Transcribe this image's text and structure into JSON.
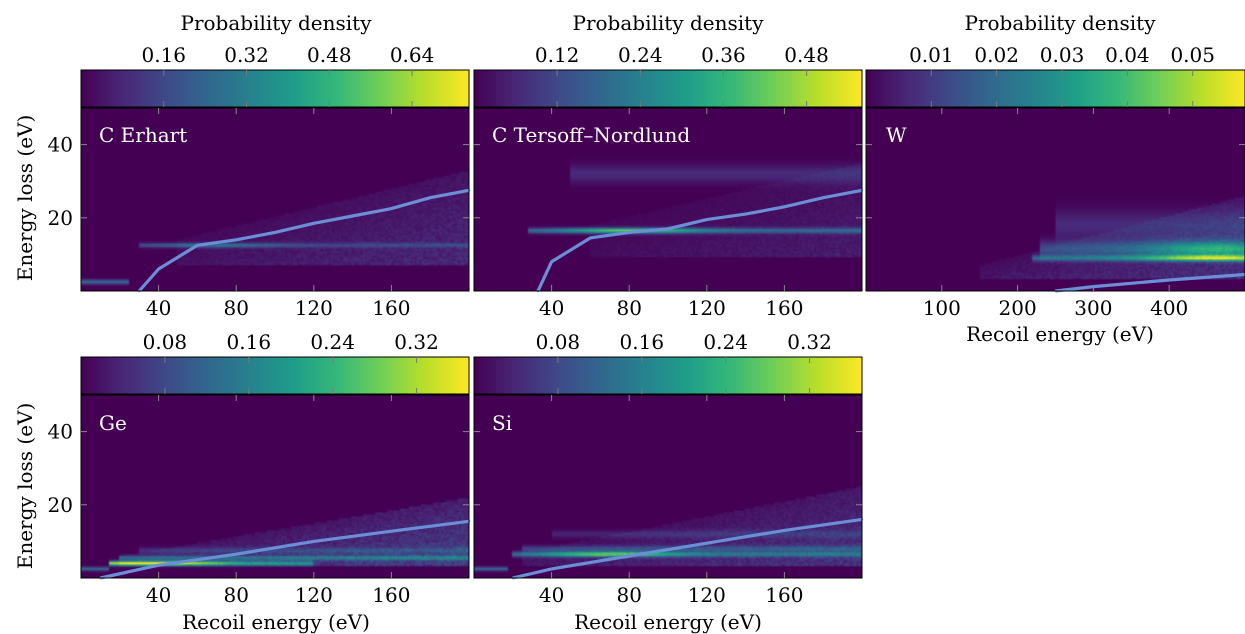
{
  "chart_data": [
    {
      "type": "heatmap",
      "panel_label": "C Erhart",
      "xlim": [
        0,
        200
      ],
      "ylim": [
        0,
        50
      ],
      "xticks": [
        40,
        80,
        120,
        160
      ],
      "yticks": [
        20,
        40
      ],
      "ylabel": "Energy loss (eV)",
      "xlabel": "",
      "colorbar": {
        "label": "Probability density",
        "ticks": [
          0.16,
          0.32,
          0.48,
          0.64
        ],
        "range": [
          0,
          0.75
        ]
      },
      "bands": [
        {
          "y": 12.5,
          "x_start": 30,
          "x_end": 200,
          "width": 0.6,
          "strength": 0.28,
          "peak_x": 65
        },
        {
          "y": 2.5,
          "x_start": 0,
          "x_end": 25,
          "width": 0.6,
          "strength": 0.35
        }
      ],
      "fans": [
        {
          "y_from": 14,
          "y_to": 33,
          "x_start": 50,
          "x_end": 200,
          "strength": 0.12
        }
      ],
      "series": [
        {
          "x": [
            30,
            40,
            60,
            80,
            100,
            120,
            140,
            160,
            180,
            200
          ],
          "y": [
            0,
            6,
            12.5,
            14,
            16,
            18.5,
            20.5,
            22.5,
            25.5,
            27.5
          ]
        }
      ]
    },
    {
      "type": "heatmap",
      "panel_label": "C Tersoff–Nordlund",
      "xlim": [
        0,
        200
      ],
      "ylim": [
        0,
        50
      ],
      "xticks": [
        40,
        80,
        120,
        160
      ],
      "yticks": [
        20,
        40
      ],
      "ylabel": "",
      "xlabel": "",
      "colorbar": {
        "label": "Probability density",
        "ticks": [
          0.12,
          0.24,
          0.36,
          0.48
        ],
        "range": [
          0,
          0.56
        ]
      },
      "bands": [
        {
          "y": 16.5,
          "x_start": 28,
          "x_end": 200,
          "width": 0.7,
          "strength": 0.55,
          "peak_x": 80
        },
        {
          "y": 32,
          "x_start": 50,
          "x_end": 200,
          "width": 2.5,
          "strength": 0.12
        }
      ],
      "fans": [
        {
          "y_from": 18,
          "y_to": 35,
          "x_start": 60,
          "x_end": 200,
          "strength": 0.08
        }
      ],
      "series": [
        {
          "x": [
            33,
            40,
            60,
            80,
            100,
            120,
            140,
            160,
            180,
            200
          ],
          "y": [
            0,
            8,
            14.5,
            16,
            17,
            19.5,
            21,
            23,
            25.5,
            27.5
          ]
        }
      ]
    },
    {
      "type": "heatmap",
      "panel_label": "W",
      "xlim": [
        0,
        500
      ],
      "ylim": [
        0,
        50
      ],
      "xticks": [
        100,
        200,
        300,
        400
      ],
      "yticks": [
        20,
        40
      ],
      "ylabel": "",
      "xlabel": "Recoil energy (eV)",
      "colorbar": {
        "label": "Probability density",
        "ticks": [
          0.01,
          0.02,
          0.03,
          0.04,
          0.05
        ],
        "range": [
          0,
          0.058
        ]
      },
      "bands": [
        {
          "y": 9,
          "x_start": 220,
          "x_end": 500,
          "width": 0.8,
          "strength": 0.55,
          "peak_x": 460
        },
        {
          "y": 11.5,
          "x_start": 230,
          "x_end": 500,
          "width": 2.2,
          "strength": 0.4,
          "peak_x": 460
        },
        {
          "y": 18,
          "x_start": 250,
          "x_end": 500,
          "width": 4,
          "strength": 0.12
        }
      ],
      "fans": [
        {
          "y_from": 7,
          "y_to": 26,
          "x_start": 150,
          "x_end": 500,
          "strength": 0.14
        }
      ],
      "series": [
        {
          "x": [
            250,
            300,
            400,
            500
          ],
          "y": [
            0,
            1.2,
            3,
            4.5
          ]
        }
      ]
    },
    {
      "type": "heatmap",
      "panel_label": "Ge",
      "xlim": [
        0,
        200
      ],
      "ylim": [
        0,
        50
      ],
      "xticks": [
        40,
        80,
        120,
        160
      ],
      "yticks": [
        20,
        40
      ],
      "ylabel": "Energy loss (eV)",
      "xlabel": "Recoil energy (eV)",
      "colorbar": {
        "label": "",
        "ticks": [
          0.08,
          0.16,
          0.24,
          0.32
        ],
        "range": [
          0,
          0.37
        ]
      },
      "bands": [
        {
          "y": 4,
          "x_start": 14,
          "x_end": 120,
          "width": 0.6,
          "strength": 0.75,
          "peak_x": 35
        },
        {
          "y": 5.5,
          "x_start": 20,
          "x_end": 200,
          "width": 0.6,
          "strength": 0.32
        },
        {
          "y": 7.5,
          "x_start": 30,
          "x_end": 200,
          "width": 0.8,
          "strength": 0.14
        },
        {
          "y": 2.5,
          "x_start": 0,
          "x_end": 14,
          "width": 0.5,
          "strength": 0.35
        }
      ],
      "fans": [
        {
          "y_from": 6,
          "y_to": 22,
          "x_start": 20,
          "x_end": 200,
          "strength": 0.2
        }
      ],
      "series": [
        {
          "x": [
            10,
            40,
            80,
            120,
            160,
            200
          ],
          "y": [
            0,
            3.5,
            6.5,
            10,
            12.8,
            15.5
          ]
        }
      ]
    },
    {
      "type": "heatmap",
      "panel_label": "Si",
      "xlim": [
        0,
        200
      ],
      "ylim": [
        0,
        50
      ],
      "xticks": [
        40,
        80,
        120,
        160
      ],
      "yticks": [
        20,
        40
      ],
      "ylabel": "",
      "xlabel": "Recoil energy (eV)",
      "colorbar": {
        "label": "",
        "ticks": [
          0.08,
          0.16,
          0.24,
          0.32
        ],
        "range": [
          0,
          0.37
        ]
      },
      "bands": [
        {
          "y": 6.5,
          "x_start": 20,
          "x_end": 200,
          "width": 0.7,
          "strength": 0.55,
          "peak_x": 70
        },
        {
          "y": 8,
          "x_start": 25,
          "x_end": 200,
          "width": 0.8,
          "strength": 0.2
        },
        {
          "y": 12,
          "x_start": 40,
          "x_end": 200,
          "width": 1,
          "strength": 0.1
        },
        {
          "y": 2.5,
          "x_start": 0,
          "x_end": 18,
          "width": 0.5,
          "strength": 0.35
        }
      ],
      "fans": [
        {
          "y_from": 7,
          "y_to": 25,
          "x_start": 25,
          "x_end": 200,
          "strength": 0.15
        }
      ],
      "series": [
        {
          "x": [
            20,
            40,
            80,
            120,
            160,
            200
          ],
          "y": [
            0,
            2.5,
            6,
            9.5,
            13,
            16
          ]
        }
      ]
    }
  ],
  "colors": {
    "curve": "#6b8fd6",
    "colormap": [
      "#440154",
      "#482878",
      "#3e4a89",
      "#31688e",
      "#26828e",
      "#1f9e89",
      "#35b779",
      "#6ece58",
      "#b5de2b",
      "#fde725"
    ]
  }
}
